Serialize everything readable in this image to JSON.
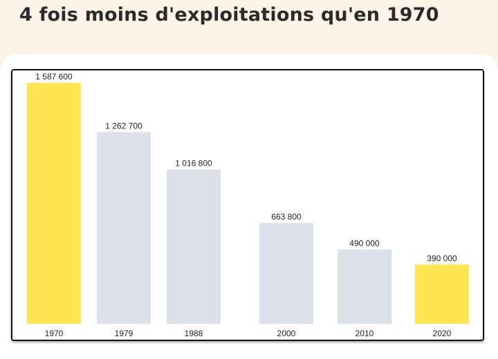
{
  "header": {
    "title": "4 fois moins d'exploitations qu'en 1970"
  },
  "colors": {
    "highlight": "#ffe552",
    "default": "#dce0e9",
    "background": "#fdf3e7"
  },
  "chart_data": {
    "type": "bar",
    "title": "4 fois moins d'exploitations qu'en 1970",
    "xlabel": "",
    "ylabel": "",
    "categories": [
      "1970",
      "1979",
      "1988",
      "2000",
      "2010",
      "2020"
    ],
    "values": [
      1587600,
      1262700,
      1016800,
      663800,
      490000,
      390000
    ],
    "value_labels": [
      "1 587 600",
      "1 262 700",
      "1 016 800",
      "663 800",
      "490 000",
      "390 000"
    ],
    "highlighted": [
      "1970",
      "2020"
    ],
    "ylim": [
      0,
      1587600
    ],
    "grid": false,
    "legend": "none"
  }
}
